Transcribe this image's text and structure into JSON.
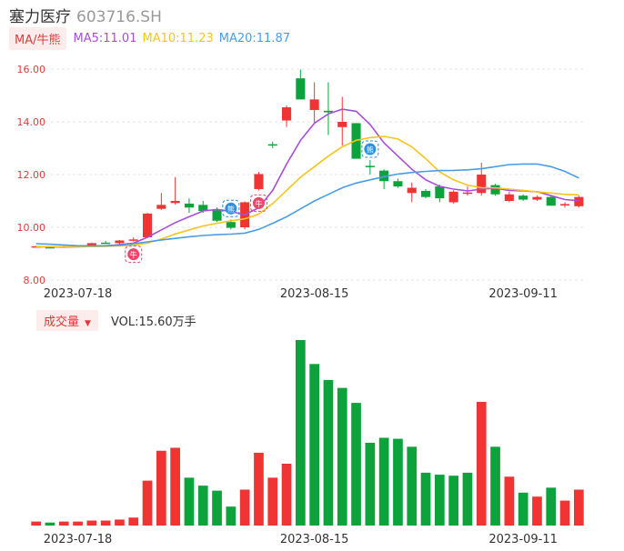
{
  "header": {
    "name": "塞力医疗",
    "code": "603716.SH"
  },
  "legend": {
    "tag": "MA/牛熊",
    "ma5": "MA5:11.01",
    "ma10": "MA10:11.23",
    "ma20": "MA20:11.87"
  },
  "volume_legend": {
    "tag": "成交量",
    "value": "VOL:15.60万手"
  },
  "colors": {
    "up": "#f03434",
    "down": "#0da33c",
    "ma5": "#a84ddb",
    "ma10": "#f5c51b",
    "ma20": "#4a9ce8",
    "tag_text": "#e03b3b"
  },
  "chart_data": [
    {
      "type": "candlestick",
      "y_ticks": [
        "16.00",
        "14.00",
        "12.00",
        "10.00",
        "8.00"
      ],
      "ylim": [
        8,
        16
      ],
      "x_tick_labels": [
        {
          "label": "2023-07-18",
          "index": 3
        },
        {
          "label": "2023-08-15",
          "index": 20
        },
        {
          "label": "2023-09-11",
          "index": 35
        }
      ],
      "candles": [
        {
          "o": 9.28,
          "c": 9.28,
          "h": 9.3,
          "l": 9.24
        },
        {
          "o": 9.25,
          "c": 9.22,
          "h": 9.28,
          "l": 9.2
        },
        {
          "o": 9.24,
          "c": 9.28,
          "h": 9.3,
          "l": 9.22
        },
        {
          "o": 9.28,
          "c": 9.3,
          "h": 9.32,
          "l": 9.26
        },
        {
          "o": 9.32,
          "c": 9.4,
          "h": 9.42,
          "l": 9.3
        },
        {
          "o": 9.42,
          "c": 9.4,
          "h": 9.48,
          "l": 9.38
        },
        {
          "o": 9.4,
          "c": 9.5,
          "h": 9.52,
          "l": 9.36
        },
        {
          "o": 9.5,
          "c": 9.54,
          "h": 9.62,
          "l": 9.46
        },
        {
          "o": 9.62,
          "c": 10.52,
          "h": 10.55,
          "l": 9.6
        },
        {
          "o": 10.7,
          "c": 10.85,
          "h": 11.3,
          "l": 10.66
        },
        {
          "o": 10.92,
          "c": 11.0,
          "h": 11.9,
          "l": 10.86
        },
        {
          "o": 10.9,
          "c": 10.75,
          "h": 11.1,
          "l": 10.55
        },
        {
          "o": 10.85,
          "c": 10.62,
          "h": 11.0,
          "l": 10.55
        },
        {
          "o": 10.65,
          "c": 10.25,
          "h": 10.75,
          "l": 10.2
        },
        {
          "o": 10.2,
          "c": 9.98,
          "h": 10.3,
          "l": 9.92
        },
        {
          "o": 10.0,
          "c": 10.95,
          "h": 10.98,
          "l": 9.92
        },
        {
          "o": 11.45,
          "c": 12.02,
          "h": 12.1,
          "l": 11.4
        },
        {
          "o": 13.15,
          "c": 13.12,
          "h": 13.25,
          "l": 13.0
        },
        {
          "o": 14.05,
          "c": 14.55,
          "h": 14.62,
          "l": 13.8
        },
        {
          "o": 15.65,
          "c": 14.85,
          "h": 15.98,
          "l": 14.85
        },
        {
          "o": 14.45,
          "c": 14.85,
          "h": 15.5,
          "l": 13.95
        },
        {
          "o": 14.42,
          "c": 14.36,
          "h": 15.5,
          "l": 13.5
        },
        {
          "o": 13.8,
          "c": 14.0,
          "h": 14.95,
          "l": 13.1
        },
        {
          "o": 13.95,
          "c": 12.6,
          "h": 13.95,
          "l": 12.6
        },
        {
          "o": 12.33,
          "c": 12.3,
          "h": 12.55,
          "l": 12.0
        },
        {
          "o": 12.15,
          "c": 11.75,
          "h": 12.2,
          "l": 11.45
        },
        {
          "o": 11.75,
          "c": 11.55,
          "h": 11.85,
          "l": 11.5
        },
        {
          "o": 11.3,
          "c": 11.5,
          "h": 11.7,
          "l": 10.95
        },
        {
          "o": 11.38,
          "c": 11.15,
          "h": 11.45,
          "l": 11.1
        },
        {
          "o": 11.55,
          "c": 11.1,
          "h": 11.62,
          "l": 10.95
        },
        {
          "o": 10.95,
          "c": 11.35,
          "h": 11.4,
          "l": 10.9
        },
        {
          "o": 11.28,
          "c": 11.32,
          "h": 11.55,
          "l": 11.2
        },
        {
          "o": 11.3,
          "c": 12.0,
          "h": 12.45,
          "l": 11.2
        },
        {
          "o": 11.6,
          "c": 11.25,
          "h": 11.65,
          "l": 11.2
        },
        {
          "o": 11.0,
          "c": 11.25,
          "h": 11.35,
          "l": 10.95
        },
        {
          "o": 11.2,
          "c": 11.05,
          "h": 11.25,
          "l": 11.0
        },
        {
          "o": 11.05,
          "c": 11.15,
          "h": 11.2,
          "l": 11.0
        },
        {
          "o": 11.15,
          "c": 10.82,
          "h": 11.2,
          "l": 10.82
        },
        {
          "o": 10.85,
          "c": 10.88,
          "h": 10.95,
          "l": 10.75
        },
        {
          "o": 10.8,
          "c": 11.15,
          "h": 11.2,
          "l": 10.75
        }
      ],
      "ma5": [
        9.26,
        9.26,
        9.25,
        9.26,
        9.28,
        9.3,
        9.34,
        9.4,
        9.62,
        9.9,
        10.18,
        10.4,
        10.62,
        10.68,
        10.6,
        10.48,
        10.74,
        11.4,
        12.4,
        13.3,
        13.95,
        14.3,
        14.48,
        14.4,
        13.9,
        13.2,
        12.7,
        12.2,
        11.8,
        11.55,
        11.45,
        11.38,
        11.45,
        11.48,
        11.4,
        11.38,
        11.35,
        11.2,
        11.05,
        11.01
      ],
      "ma10": [
        9.27,
        9.27,
        9.26,
        9.26,
        9.27,
        9.28,
        9.3,
        9.32,
        9.4,
        9.55,
        9.75,
        9.9,
        10.05,
        10.15,
        10.25,
        10.32,
        10.5,
        10.9,
        11.4,
        11.9,
        12.3,
        12.7,
        13.05,
        13.3,
        13.4,
        13.45,
        13.35,
        13.05,
        12.6,
        12.1,
        11.8,
        11.6,
        11.5,
        11.5,
        11.45,
        11.4,
        11.35,
        11.3,
        11.25,
        11.23
      ],
      "ma20": [
        9.38,
        9.36,
        9.33,
        9.3,
        9.3,
        9.3,
        9.32,
        9.38,
        9.45,
        9.52,
        9.58,
        9.64,
        9.69,
        9.72,
        9.74,
        9.78,
        9.92,
        10.15,
        10.4,
        10.7,
        11.0,
        11.25,
        11.5,
        11.68,
        11.8,
        11.92,
        12.02,
        12.08,
        12.12,
        12.15,
        12.16,
        12.18,
        12.22,
        12.3,
        12.38,
        12.4,
        12.4,
        12.3,
        12.12,
        11.87
      ],
      "markers": [
        {
          "index": 7,
          "label": "牛",
          "kind": "bull"
        },
        {
          "index": 14,
          "label": "熊",
          "kind": "bear"
        },
        {
          "index": 16,
          "label": "牛",
          "kind": "bull"
        },
        {
          "index": 24,
          "label": "熊",
          "kind": "bear"
        }
      ]
    },
    {
      "type": "bar",
      "title": "成交量",
      "volumes": [
        4,
        3,
        4,
        4,
        5,
        5,
        6,
        8,
        45,
        75,
        78,
        48,
        40,
        35,
        19,
        36,
        73,
        48,
        62,
        186,
        162,
        146,
        138,
        123,
        83,
        88,
        87,
        79,
        53,
        51,
        50,
        53,
        124,
        79,
        49,
        33,
        29,
        38,
        25,
        36
      ],
      "up": [
        1,
        0,
        1,
        1,
        1,
        1,
        1,
        1,
        1,
        1,
        1,
        0,
        0,
        0,
        0,
        1,
        1,
        1,
        1,
        0,
        0,
        0,
        0,
        0,
        0,
        0,
        0,
        0,
        0,
        0,
        0,
        0,
        1,
        0,
        1,
        0,
        1,
        0,
        1,
        1
      ]
    }
  ]
}
